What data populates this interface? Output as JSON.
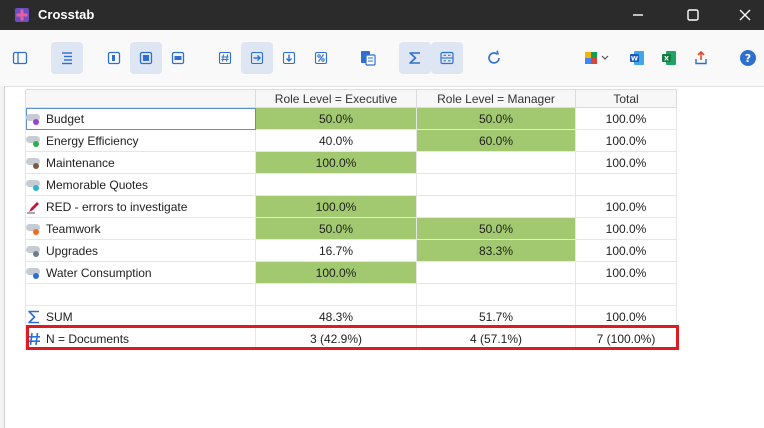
{
  "window": {
    "title": "Crosstab",
    "controls": [
      "minimize",
      "maximize",
      "close"
    ]
  },
  "toolbar": {
    "buttons": [
      {
        "name": "panel-layout-icon",
        "active": false
      },
      {
        "name": "align-center-icon",
        "active": true
      },
      {
        "name": "row-percent-icon",
        "active": false
      },
      {
        "name": "column-percent-icon",
        "active": true
      },
      {
        "name": "total-percent-icon",
        "active": false
      },
      {
        "name": "show-counts-icon",
        "active": false
      },
      {
        "name": "export-right-icon",
        "active": true
      },
      {
        "name": "export-down-icon",
        "active": false
      },
      {
        "name": "percent-icon",
        "active": false
      },
      {
        "name": "document-code-icon",
        "active": false
      },
      {
        "name": "sum-icon",
        "active": true
      },
      {
        "name": "table-toggle-icon",
        "active": true
      },
      {
        "name": "refresh-icon",
        "active": false
      },
      {
        "name": "color-picker-icon",
        "active": false
      },
      {
        "name": "word-export-icon",
        "active": false
      },
      {
        "name": "excel-export-icon",
        "active": false
      },
      {
        "name": "share-export-icon",
        "active": false
      },
      {
        "name": "help-icon",
        "active": false
      }
    ]
  },
  "crosstab": {
    "columns": [
      "Role Level = Executive",
      "Role Level = Manager",
      "Total"
    ],
    "rows": [
      {
        "label": "Budget",
        "icon": "code-icon",
        "color": "#9b3fd9",
        "values": [
          "50.0%",
          "50.0%",
          "100.0%"
        ],
        "highlight": [
          true,
          true,
          false
        ]
      },
      {
        "label": "Energy Efficiency",
        "icon": "code-icon",
        "color": "#27b34a",
        "values": [
          "40.0%",
          "60.0%",
          "100.0%"
        ],
        "highlight": [
          false,
          true,
          false
        ]
      },
      {
        "label": "Maintenance",
        "icon": "code-icon",
        "color": "#7a5a44",
        "values": [
          "100.0%",
          "",
          "100.0%"
        ],
        "highlight": [
          true,
          false,
          false
        ]
      },
      {
        "label": "Memorable Quotes",
        "icon": "code-icon",
        "color": "#2fb3c9",
        "values": [
          "",
          "",
          ""
        ],
        "highlight": [
          false,
          false,
          false
        ]
      },
      {
        "label": "RED - errors to investigate",
        "icon": "marker-icon",
        "color": "#c1163c",
        "values": [
          "100.0%",
          "",
          "100.0%"
        ],
        "highlight": [
          true,
          false,
          false
        ]
      },
      {
        "label": "Teamwork",
        "icon": "code-icon",
        "color": "#f26b21",
        "values": [
          "50.0%",
          "50.0%",
          "100.0%"
        ],
        "highlight": [
          true,
          true,
          false
        ]
      },
      {
        "label": "Upgrades",
        "icon": "code-icon",
        "color": "#6e7c8a",
        "values": [
          "16.7%",
          "83.3%",
          "100.0%"
        ],
        "highlight": [
          false,
          true,
          false
        ]
      },
      {
        "label": "Water Consumption",
        "icon": "code-icon",
        "color": "#2d6fd6",
        "values": [
          "100.0%",
          "",
          "100.0%"
        ],
        "highlight": [
          true,
          false,
          false
        ]
      }
    ],
    "sum_row": {
      "label": "SUM",
      "values": [
        "48.3%",
        "51.7%",
        "100.0%"
      ]
    },
    "n_row": {
      "label": "N = Documents",
      "values": [
        "3 (42.9%)",
        "4 (57.1%)",
        "7 (100.0%)"
      ]
    }
  },
  "colors": {
    "highlight_cell": "#a2c96f",
    "selection_box": "#e01a22",
    "titlebar": "#2b2b2b",
    "icon_accent": "#2f6fd0"
  }
}
